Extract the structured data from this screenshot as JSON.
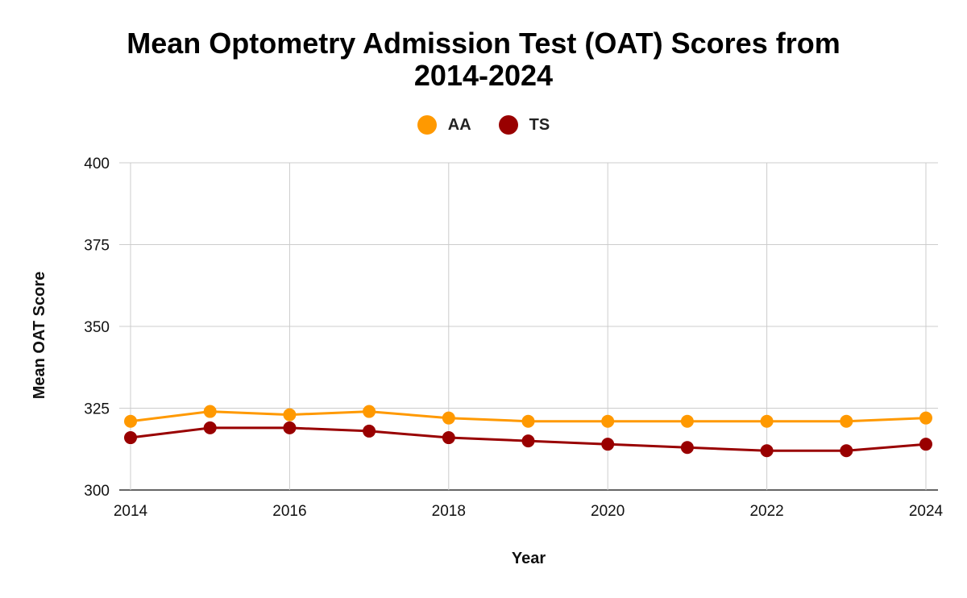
{
  "chart_data": {
    "type": "line",
    "title_lines": [
      "Mean Optometry Admission Test (OAT) Scores from",
      "2014-2024"
    ],
    "xlabel": "Year",
    "ylabel": "Mean OAT Score",
    "x": [
      2014,
      2015,
      2016,
      2017,
      2018,
      2019,
      2020,
      2021,
      2022,
      2023,
      2024
    ],
    "x_ticks": [
      2014,
      2016,
      2018,
      2020,
      2022,
      2024
    ],
    "y_ticks": [
      300,
      325,
      350,
      375,
      400
    ],
    "xlim": [
      2014,
      2024
    ],
    "ylim": [
      300,
      400
    ],
    "grid": true,
    "legend_position": "top-center",
    "series": [
      {
        "name": "AA",
        "color": "#FF9900",
        "values": [
          321,
          324,
          323,
          324,
          322,
          321,
          321,
          321,
          321,
          321,
          322
        ]
      },
      {
        "name": "TS",
        "color": "#990000",
        "values": [
          316,
          319,
          319,
          318,
          316,
          315,
          314,
          313,
          312,
          312,
          314
        ]
      }
    ]
  }
}
